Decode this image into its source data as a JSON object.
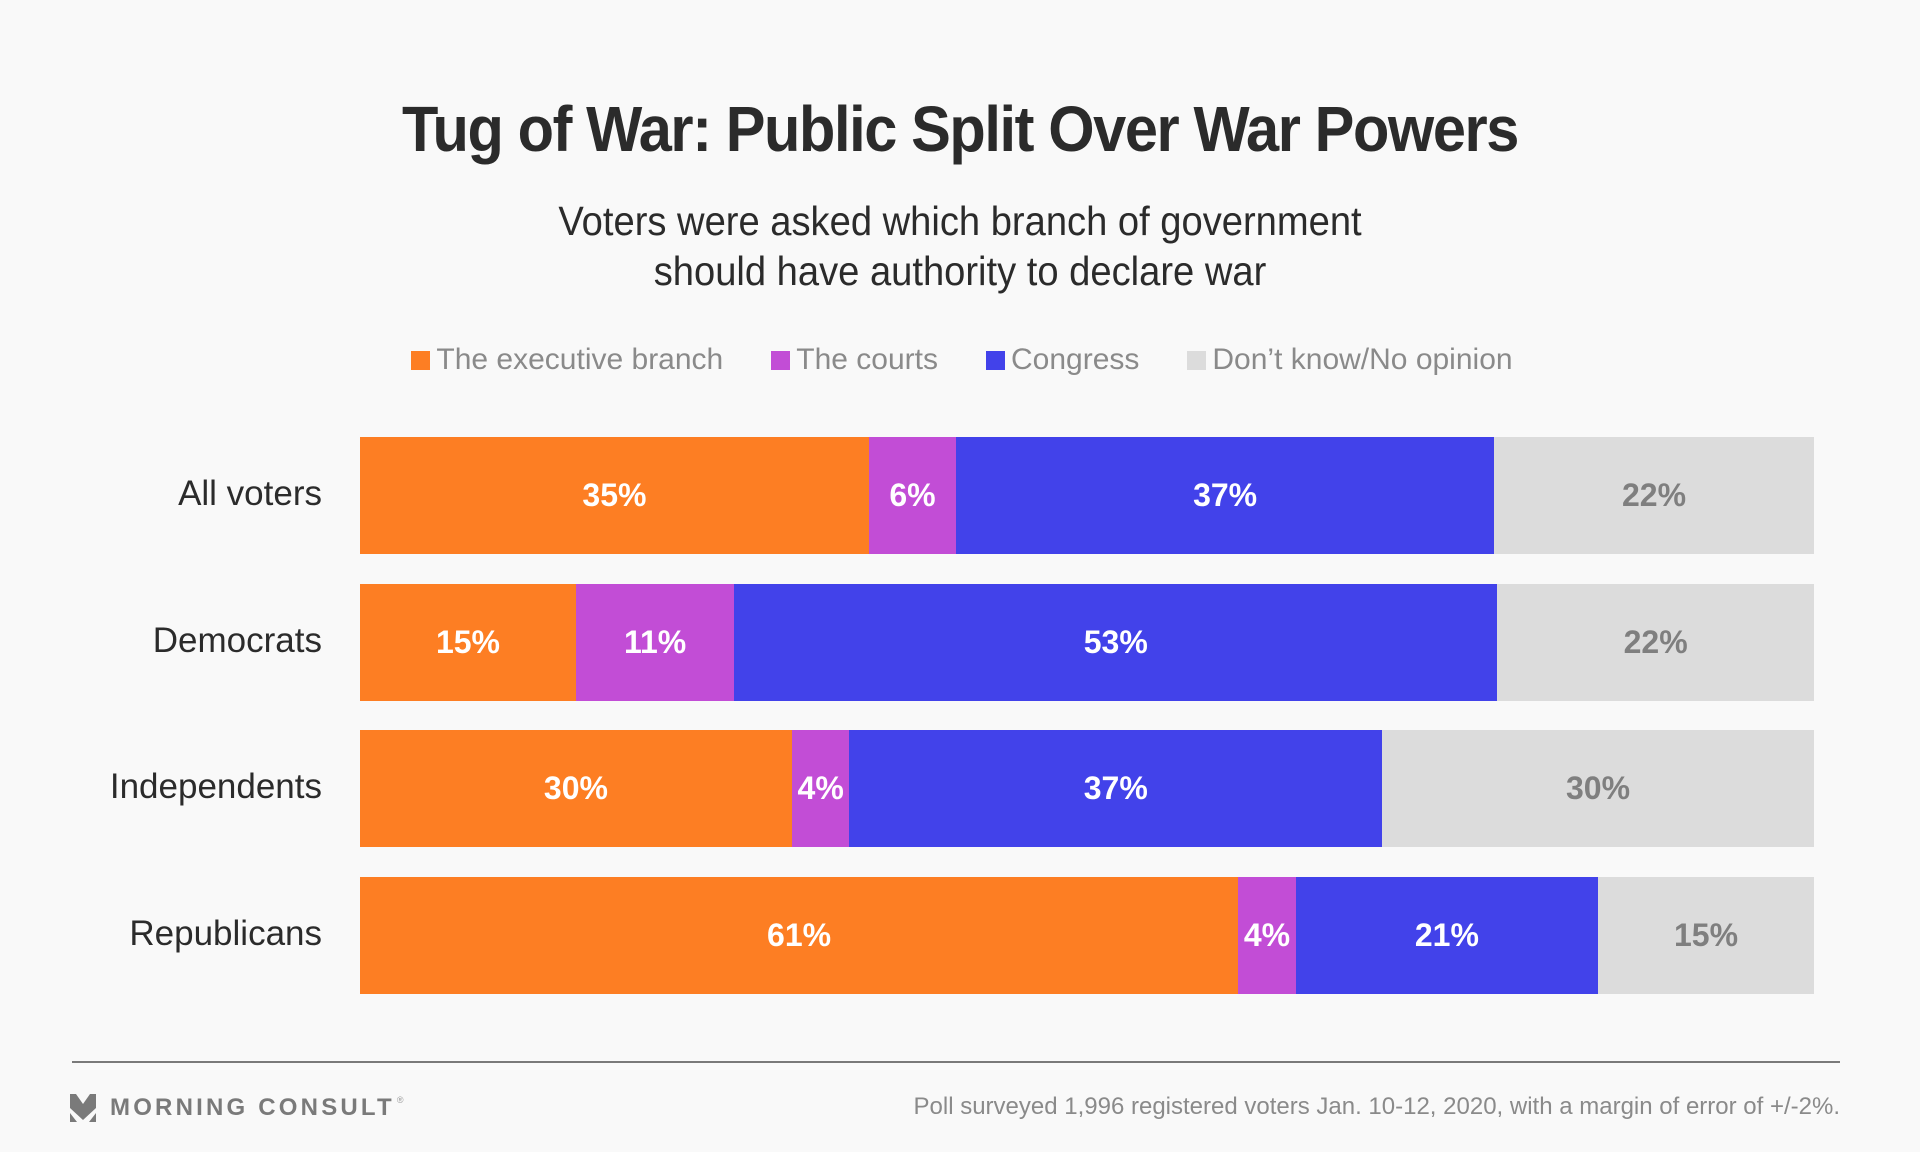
{
  "chart_data": {
    "type": "bar",
    "orientation": "horizontal",
    "stacked": true,
    "title": "Tug of War: Public Split Over War Powers",
    "subtitle": [
      "Voters were asked which branch of government",
      "should have authority to declare war"
    ],
    "xlabel": "",
    "ylabel": "",
    "legend_position": "top-center",
    "grid": false,
    "categories": [
      "All voters",
      "Democrats",
      "Independents",
      "Republicans"
    ],
    "series": [
      {
        "name": "The executive branch",
        "color": "#fd7e23",
        "label_color": "#ffffff",
        "values": [
          35,
          15,
          30,
          61
        ]
      },
      {
        "name": "The courts",
        "color": "#c24dd6",
        "label_color": "#ffffff",
        "values": [
          6,
          11,
          4,
          4
        ]
      },
      {
        "name": "Congress",
        "color": "#4242ea",
        "label_color": "#ffffff",
        "values": [
          37,
          53,
          37,
          21
        ]
      },
      {
        "name": "Don't know/No opinion",
        "color": "#dcdcdc",
        "label_color": "#7f7f7f",
        "values": [
          22,
          22,
          30,
          15
        ]
      }
    ],
    "value_suffix": "%",
    "xlim": [
      0,
      100
    ]
  },
  "legend": [
    {
      "label": "The executive branch",
      "color": "#fd7e23"
    },
    {
      "label": "The courts",
      "color": "#c24dd6"
    },
    {
      "label": "Congress",
      "color": "#4242ea"
    },
    {
      "label": "Don’t know/No opinion",
      "color": "#dcdcdc"
    }
  ],
  "footer": {
    "brand": "MORNING CONSULT",
    "brand_mark": "registered-trademark",
    "source": "Poll surveyed 1,996 registered voters Jan. 10-12, 2020, with a margin of error of +/-2%."
  }
}
